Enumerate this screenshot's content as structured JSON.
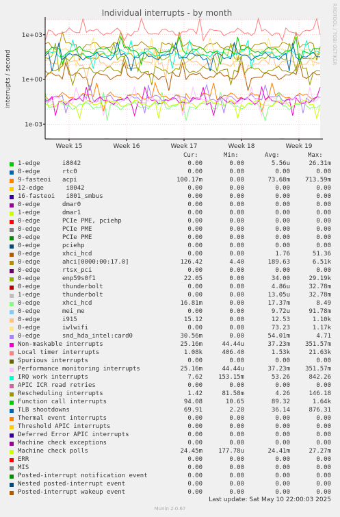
{
  "chart_data": {
    "type": "line",
    "title": "Individual interrupts - by month",
    "ylabel": "interrupts / second",
    "yscale": "log",
    "ylim": [
      0.0001,
      10000
    ],
    "y_ticks": [
      {
        "value": 0.001,
        "label": "1e-03"
      },
      {
        "value": 1,
        "label": "1e+00"
      },
      {
        "value": 1000,
        "label": "1e+03"
      }
    ],
    "x_ticks": [
      "Week 15",
      "Week 16",
      "Week 17",
      "Week 18",
      "Week 19"
    ],
    "grid": true,
    "series": [
      {
        "name": "1-edge      i8042",
        "color": "#00cc00",
        "cur": "0.00",
        "min": "0.00",
        "avg": "5.56u",
        "max": "26.31m"
      },
      {
        "name": "8-edge      rtc0",
        "color": "#0066b3",
        "cur": "0.00",
        "min": "0.00",
        "avg": "0.00",
        "max": "0.00"
      },
      {
        "name": "9-fasteoi   acpi",
        "color": "#ff8000",
        "cur": "100.17m",
        "min": "0.00",
        "avg": "73.68m",
        "max": "713.59m"
      },
      {
        "name": "12-edge      i8042",
        "color": "#ffcc00",
        "cur": "0.00",
        "min": "0.00",
        "avg": "0.00",
        "max": "0.00"
      },
      {
        "name": "16-fasteoi   i801_smbus",
        "color": "#330099",
        "cur": "0.00",
        "min": "0.00",
        "avg": "0.00",
        "max": "0.00"
      },
      {
        "name": "0-edge      dmar0",
        "color": "#990099",
        "cur": "0.00",
        "min": "0.00",
        "avg": "0.00",
        "max": "0.00"
      },
      {
        "name": "1-edge      dmar1",
        "color": "#ccff00",
        "cur": "0.00",
        "min": "0.00",
        "avg": "0.00",
        "max": "0.00"
      },
      {
        "name": "0-edge      PCIe PME, pciehp",
        "color": "#ff0000",
        "cur": "0.00",
        "min": "0.00",
        "avg": "0.00",
        "max": "0.00"
      },
      {
        "name": "0-edge      PCIe PME",
        "color": "#808080",
        "cur": "0.00",
        "min": "0.00",
        "avg": "0.00",
        "max": "0.00"
      },
      {
        "name": "0-edge      PCIe PME",
        "color": "#008f00",
        "cur": "0.00",
        "min": "0.00",
        "avg": "0.00",
        "max": "0.00"
      },
      {
        "name": "0-edge      pciehp",
        "color": "#00487d",
        "cur": "0.00",
        "min": "0.00",
        "avg": "0.00",
        "max": "0.00"
      },
      {
        "name": "0-edge      xhci_hcd",
        "color": "#b35a00",
        "cur": "0.00",
        "min": "0.00",
        "avg": "1.76",
        "max": "51.36"
      },
      {
        "name": "0-edge      ahci[0000:00:17.0]",
        "color": "#b38f00",
        "cur": "126.42",
        "min": "4.40",
        "avg": "189.63",
        "max": "6.51k"
      },
      {
        "name": "0-edge      rtsx_pci",
        "color": "#6b006b",
        "cur": "0.00",
        "min": "0.00",
        "avg": "0.00",
        "max": "0.00"
      },
      {
        "name": "0-edge      enp59s0f1",
        "color": "#8fb300",
        "cur": "22.05",
        "min": "0.00",
        "avg": "34.00",
        "max": "29.19k"
      },
      {
        "name": "0-edge      thunderbolt",
        "color": "#b30000",
        "cur": "0.00",
        "min": "0.00",
        "avg": "4.86u",
        "max": "32.78m"
      },
      {
        "name": "1-edge      thunderbolt",
        "color": "#bebebe",
        "cur": "0.00",
        "min": "0.00",
        "avg": "13.05u",
        "max": "32.78m"
      },
      {
        "name": "0-edge      xhci_hcd",
        "color": "#80ff80",
        "cur": "16.81m",
        "min": "0.00",
        "avg": "17.37m",
        "max": "8.49"
      },
      {
        "name": "0-edge      mei_me",
        "color": "#80c9ff",
        "cur": "0.00",
        "min": "0.00",
        "avg": "9.72u",
        "max": "91.78m"
      },
      {
        "name": "0-edge      i915",
        "color": "#ffc080",
        "cur": "15.12",
        "min": "0.00",
        "avg": "12.53",
        "max": "1.10k"
      },
      {
        "name": "0-edge      iwlwifi",
        "color": "#ffe680",
        "cur": "0.00",
        "min": "0.00",
        "avg": "73.23",
        "max": "1.17k"
      },
      {
        "name": "0-edge      snd_hda_intel:card0",
        "color": "#aa80ff",
        "cur": "30.56m",
        "min": "0.00",
        "avg": "54.01m",
        "max": "4.71"
      },
      {
        "name": "Non-maskable interrupts",
        "color": "#ee00cc",
        "cur": "25.16m",
        "min": "44.44u",
        "avg": "37.23m",
        "max": "351.57m"
      },
      {
        "name": "Local timer interrupts",
        "color": "#ff8080",
        "cur": "1.08k",
        "min": "406.40",
        "avg": "1.53k",
        "max": "21.63k"
      },
      {
        "name": "Spurious interrupts",
        "color": "#666600",
        "cur": "0.00",
        "min": "0.00",
        "avg": "0.00",
        "max": "0.00"
      },
      {
        "name": "Performance monitoring interrupts",
        "color": "#ffbfff",
        "cur": "25.16m",
        "min": "44.44u",
        "avg": "37.23m",
        "max": "351.57m"
      },
      {
        "name": "IRQ work interrupts",
        "color": "#00ffcc",
        "cur": "7.62",
        "min": "153.15m",
        "avg": "53.26",
        "max": "842.26"
      },
      {
        "name": "APIC ICR read retries",
        "color": "#cc6699",
        "cur": "0.00",
        "min": "0.00",
        "avg": "0.00",
        "max": "0.00"
      },
      {
        "name": "Rescheduling interrupts",
        "color": "#999900",
        "cur": "1.42",
        "min": "81.58m",
        "avg": "4.26",
        "max": "146.18"
      },
      {
        "name": "Function call interrupts",
        "color": "#00cc00",
        "cur": "94.08",
        "min": "10.65",
        "avg": "89.32",
        "max": "1.64k"
      },
      {
        "name": "TLB shootdowns",
        "color": "#0066b3",
        "cur": "69.91",
        "min": "2.28",
        "avg": "36.14",
        "max": "876.31"
      },
      {
        "name": "Thermal event interrupts",
        "color": "#ff8000",
        "cur": "0.00",
        "min": "0.00",
        "avg": "0.00",
        "max": "0.00"
      },
      {
        "name": "Threshold APIC interrupts",
        "color": "#ffcc00",
        "cur": "0.00",
        "min": "0.00",
        "avg": "0.00",
        "max": "0.00"
      },
      {
        "name": "Deferred Error APIC interrupts",
        "color": "#330099",
        "cur": "0.00",
        "min": "0.00",
        "avg": "0.00",
        "max": "0.00"
      },
      {
        "name": "Machine check exceptions",
        "color": "#990099",
        "cur": "0.00",
        "min": "0.00",
        "avg": "0.00",
        "max": "0.00"
      },
      {
        "name": "Machine check polls",
        "color": "#ccff00",
        "cur": "24.45m",
        "min": "177.78u",
        "avg": "24.41m",
        "max": "27.27m"
      },
      {
        "name": "ERR",
        "color": "#ff0000",
        "cur": "0.00",
        "min": "0.00",
        "avg": "0.00",
        "max": "0.00"
      },
      {
        "name": "MIS",
        "color": "#808080",
        "cur": "0.00",
        "min": "0.00",
        "avg": "0.00",
        "max": "0.00"
      },
      {
        "name": "Posted-interrupt notification event",
        "color": "#008f00",
        "cur": "0.00",
        "min": "0.00",
        "avg": "0.00",
        "max": "0.00"
      },
      {
        "name": "Nested posted-interrupt event",
        "color": "#00487d",
        "cur": "0.00",
        "min": "0.00",
        "avg": "0.00",
        "max": "0.00"
      },
      {
        "name": "Posted-interrupt wakeup event",
        "color": "#b35a00",
        "cur": "0.00",
        "min": "0.00",
        "avg": "0.00",
        "max": "0.00"
      }
    ]
  },
  "legend_header": {
    "cur": "Cur:",
    "min": "Min:",
    "avg": "Avg:",
    "max": "Max:"
  },
  "side_label": "RRDTOOL / TOBI OETIKER",
  "last_update": "Last update: Sat May 10 22:00:03 2025",
  "footer_version": "Munin 2.0.67",
  "colors": {
    "background": "#f0f0f0",
    "plot_background": "#ffffff",
    "grid": "#ff9999"
  }
}
